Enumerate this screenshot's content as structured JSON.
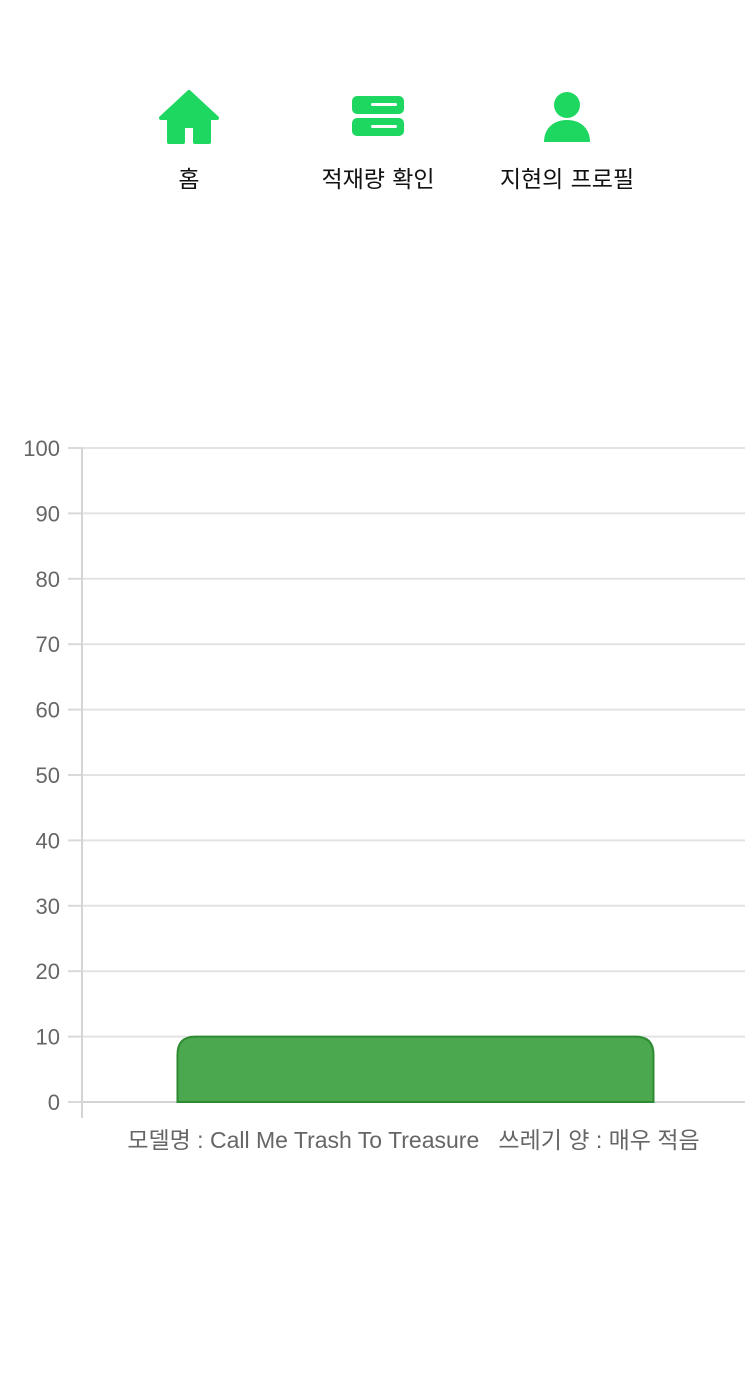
{
  "nav": {
    "items": [
      {
        "id": "home",
        "label": "홈",
        "icon": "home-icon"
      },
      {
        "id": "stock",
        "label": "적재량 확인",
        "icon": "storage-icon"
      },
      {
        "id": "profile",
        "label": "지현의 프로필",
        "icon": "user-icon"
      }
    ],
    "accent": "#1ed760"
  },
  "chart_data": {
    "type": "bar",
    "categories": [
      "모델명 : Call Me Trash To Treasure   쓰레기 양 : 매우 적음"
    ],
    "values": [
      10
    ],
    "ylim": [
      0,
      100
    ],
    "yticks": [
      0,
      10,
      20,
      30,
      40,
      50,
      60,
      70,
      80,
      90,
      100
    ],
    "grid": true,
    "bar_color": "#4ba84f",
    "bar_border_color": "#2e8b32"
  }
}
